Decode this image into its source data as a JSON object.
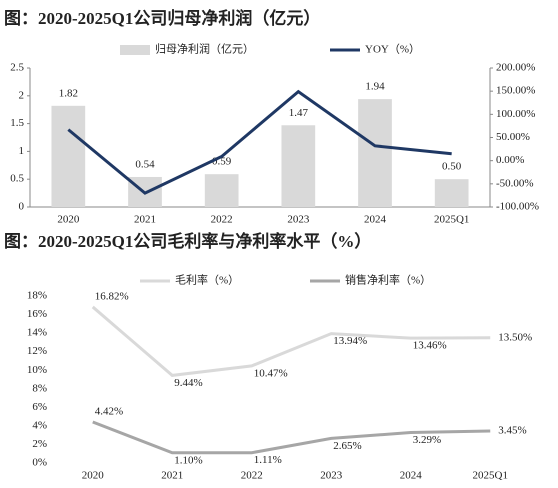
{
  "chart_data": [
    {
      "type": "bar",
      "title": "图：2020-2025Q1公司归母净利润（亿元）",
      "categories": [
        "2020",
        "2021",
        "2022",
        "2023",
        "2024",
        "2025Q1"
      ],
      "series": [
        {
          "name": "归母净利润（亿元）",
          "type": "bar",
          "color": "#d9d9d9",
          "values": [
            1.82,
            0.54,
            0.59,
            1.47,
            1.94,
            0.5
          ],
          "value_labels": [
            "1.82",
            "0.54",
            "0.59",
            "1.47",
            "1.94",
            "0.50"
          ]
        },
        {
          "name": "YOY（%）",
          "type": "line",
          "axis": "y2",
          "color": "#1f3864",
          "values": [
            67,
            -70,
            9,
            149,
            32,
            15
          ]
        }
      ],
      "ylim": [
        0,
        2.5
      ],
      "yticks": [
        0,
        0.5,
        1,
        1.5,
        2,
        2.5
      ],
      "y2lim": [
        -100,
        200
      ],
      "y2ticks": [
        {
          "value": -100,
          "label": "-100.00%"
        },
        {
          "value": -50,
          "label": "-50.00%"
        },
        {
          "value": 0,
          "label": "0.00%"
        },
        {
          "value": 50,
          "label": "50.00%"
        },
        {
          "value": 100,
          "label": "100.00%"
        },
        {
          "value": 150,
          "label": "150.00%"
        },
        {
          "value": 200,
          "label": "200.00%"
        }
      ],
      "legend": "top"
    },
    {
      "type": "line",
      "title": "图：2020-2025Q1公司毛利率与净利率水平（%）",
      "categories": [
        "2020",
        "2021",
        "2022",
        "2023",
        "2024",
        "2025Q1"
      ],
      "series": [
        {
          "name": "毛利率（%）",
          "color": "#d9d9d9",
          "values": [
            16.82,
            9.44,
            10.47,
            13.94,
            13.46,
            13.5
          ],
          "value_labels": [
            "16.82%",
            "9.44%",
            "10.47%",
            "13.94%",
            "13.46%",
            "13.50%"
          ]
        },
        {
          "name": "销售净利率（%）",
          "color": "#a6a6a6",
          "values": [
            4.42,
            1.1,
            1.11,
            2.65,
            3.29,
            3.45
          ],
          "value_labels": [
            "4.42%",
            "1.10%",
            "1.11%",
            "2.65%",
            "3.29%",
            "3.45%"
          ]
        }
      ],
      "ylim": [
        0,
        18
      ],
      "yticks": [
        {
          "value": 0,
          "label": "0%"
        },
        {
          "value": 2,
          "label": "2%"
        },
        {
          "value": 4,
          "label": "4%"
        },
        {
          "value": 6,
          "label": "6%"
        },
        {
          "value": 8,
          "label": "8%"
        },
        {
          "value": 10,
          "label": "10%"
        },
        {
          "value": 12,
          "label": "12%"
        },
        {
          "value": 14,
          "label": "14%"
        },
        {
          "value": 16,
          "label": "16%"
        },
        {
          "value": 18,
          "label": "18%"
        }
      ],
      "legend": "top"
    }
  ]
}
